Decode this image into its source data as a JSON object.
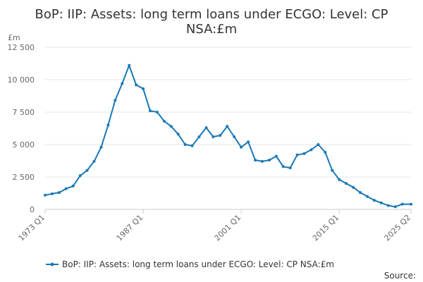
{
  "chart_data": {
    "type": "line",
    "title_lines": [
      "BoP: IIP: Assets: long term loans under ECGO: Level: CP",
      "NSA:£m"
    ],
    "ylabel": "£m",
    "xlabel": "",
    "ylim": [
      0,
      12500
    ],
    "yticks": [
      0,
      2500,
      5000,
      7500,
      10000,
      12500
    ],
    "ytick_labels": [
      "0",
      "2 500",
      "5 000",
      "7 500",
      "10 000",
      "12 500"
    ],
    "xtick_labels": [
      "1973 Q1",
      "1987 Q1",
      "2001 Q1",
      "2015 Q1",
      "2025 Q2"
    ],
    "grid": true,
    "legend_position": "bottom",
    "source": "Source:",
    "colors": {
      "series": "#1a78b5",
      "grid": "#e6e6e6",
      "axis": "#cccccc"
    },
    "series": [
      {
        "name": "BoP: IIP: Assets: long term loans under ECGO: Level: CP NSA:£m",
        "x": [
          "1973 Q1",
          "1974 Q1",
          "1975 Q1",
          "1976 Q1",
          "1977 Q1",
          "1978 Q1",
          "1979 Q1",
          "1980 Q1",
          "1981 Q1",
          "1982 Q1",
          "1983 Q1",
          "1984 Q1",
          "1985 Q1",
          "1986 Q1",
          "1987 Q1",
          "1988 Q1",
          "1989 Q1",
          "1990 Q1",
          "1991 Q1",
          "1992 Q1",
          "1993 Q1",
          "1994 Q1",
          "1995 Q1",
          "1996 Q1",
          "1997 Q1",
          "1998 Q1",
          "1999 Q1",
          "2000 Q1",
          "2001 Q1",
          "2002 Q1",
          "2003 Q1",
          "2004 Q1",
          "2005 Q1",
          "2006 Q1",
          "2007 Q1",
          "2008 Q1",
          "2009 Q1",
          "2010 Q1",
          "2011 Q1",
          "2012 Q1",
          "2013 Q1",
          "2014 Q1",
          "2015 Q1",
          "2016 Q1",
          "2017 Q1",
          "2018 Q1",
          "2019 Q1",
          "2020 Q1",
          "2021 Q1",
          "2022 Q1",
          "2023 Q1",
          "2024 Q1",
          "2025 Q2"
        ],
        "values": [
          1100,
          1200,
          1300,
          1600,
          1800,
          2600,
          3000,
          3700,
          4800,
          6500,
          8400,
          9700,
          11100,
          9600,
          9300,
          7600,
          7500,
          6800,
          6400,
          5800,
          5000,
          4900,
          5600,
          6300,
          5600,
          5700,
          6400,
          5600,
          4800,
          5200,
          3800,
          3700,
          3800,
          4100,
          3300,
          3200,
          4200,
          4300,
          4600,
          5000,
          4400,
          3000,
          2300,
          2000,
          1700,
          1300,
          1000,
          700,
          500,
          300,
          200,
          400,
          400
        ]
      }
    ]
  }
}
